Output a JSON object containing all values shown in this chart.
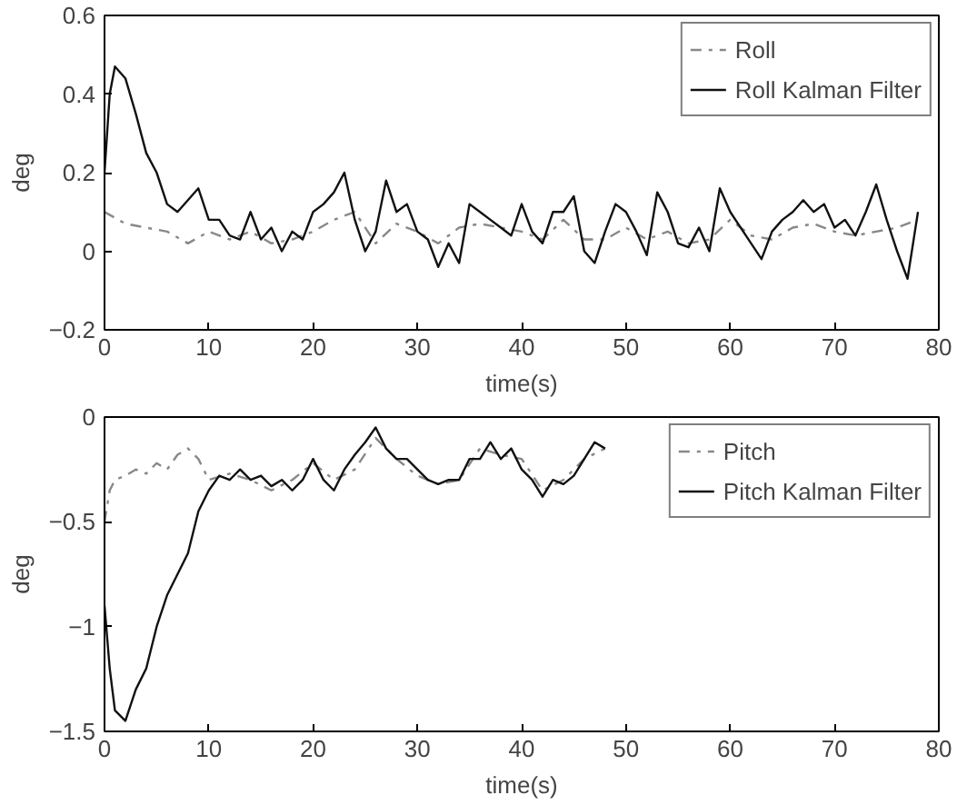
{
  "chart_data": [
    {
      "type": "line",
      "xlabel": "time(s)",
      "ylabel": "deg",
      "xlim": [
        0,
        80
      ],
      "ylim": [
        -0.2,
        0.6
      ],
      "xticks": [
        0,
        10,
        20,
        30,
        40,
        50,
        60,
        70,
        80
      ],
      "yticks": [
        -0.2,
        0,
        0.2,
        0.4,
        0.6
      ],
      "grid": false,
      "legend": "top right",
      "series": [
        {
          "name": "Roll",
          "color": "#888888",
          "line_style": "dashed",
          "x": [
            0,
            2,
            4,
            6,
            8,
            10,
            12,
            14,
            16,
            18,
            20,
            22,
            24,
            26,
            28,
            30,
            32,
            34,
            36,
            38,
            40,
            42,
            44,
            46,
            48,
            50,
            52,
            54,
            56,
            58,
            60,
            62,
            64,
            66,
            68,
            70,
            72,
            74,
            76,
            78
          ],
          "values": [
            0.1,
            0.07,
            0.06,
            0.05,
            0.02,
            0.05,
            0.03,
            0.05,
            0.02,
            0.03,
            0.05,
            0.08,
            0.1,
            0.02,
            0.07,
            0.05,
            0.02,
            0.06,
            0.07,
            0.06,
            0.05,
            0.03,
            0.08,
            0.03,
            0.03,
            0.06,
            0.03,
            0.05,
            0.02,
            0.03,
            0.08,
            0.04,
            0.03,
            0.06,
            0.07,
            0.05,
            0.04,
            0.05,
            0.06,
            0.08
          ]
        },
        {
          "name": "Roll Kalman Filter",
          "color": "#111111",
          "line_style": "solid",
          "x": [
            0,
            0.5,
            1,
            2,
            3,
            4,
            5,
            6,
            7,
            8,
            9,
            10,
            11,
            12,
            13,
            14,
            15,
            16,
            17,
            18,
            19,
            20,
            21,
            22,
            23,
            24,
            25,
            26,
            27,
            28,
            29,
            30,
            31,
            32,
            33,
            34,
            35,
            36,
            37,
            38,
            39,
            40,
            41,
            42,
            43,
            44,
            45,
            46,
            47,
            48,
            49,
            50,
            51,
            52,
            53,
            54,
            55,
            56,
            57,
            58,
            59,
            60,
            61,
            62,
            63,
            64,
            65,
            66,
            67,
            68,
            69,
            70,
            71,
            72,
            73,
            74,
            75,
            76,
            77,
            78
          ],
          "values": [
            0.2,
            0.4,
            0.47,
            0.44,
            0.35,
            0.25,
            0.2,
            0.12,
            0.1,
            0.13,
            0.16,
            0.08,
            0.08,
            0.04,
            0.03,
            0.1,
            0.03,
            0.06,
            0.0,
            0.05,
            0.03,
            0.1,
            0.12,
            0.15,
            0.2,
            0.08,
            0.0,
            0.05,
            0.18,
            0.1,
            0.12,
            0.05,
            0.03,
            -0.04,
            0.02,
            -0.03,
            0.12,
            0.1,
            0.08,
            0.06,
            0.04,
            0.12,
            0.05,
            0.02,
            0.1,
            0.1,
            0.14,
            0.0,
            -0.03,
            0.05,
            0.12,
            0.1,
            0.05,
            -0.01,
            0.15,
            0.1,
            0.02,
            0.01,
            0.06,
            0.0,
            0.16,
            0.1,
            0.06,
            0.02,
            -0.02,
            0.05,
            0.08,
            0.1,
            0.13,
            0.1,
            0.12,
            0.06,
            0.08,
            0.04,
            0.1,
            0.17,
            0.08,
            0.0,
            -0.07,
            0.1
          ]
        }
      ]
    },
    {
      "type": "line",
      "xlabel": "time(s)",
      "ylabel": "deg",
      "xlim": [
        0,
        80
      ],
      "ylim": [
        -1.5,
        0
      ],
      "xticks": [
        0,
        10,
        20,
        30,
        40,
        50,
        60,
        70,
        80
      ],
      "yticks": [
        -1.5,
        -1,
        -0.5,
        0
      ],
      "grid": false,
      "legend": "top right",
      "series": [
        {
          "name": "Pitch",
          "color": "#888888",
          "line_style": "dashed",
          "x": [
            0,
            0.5,
            1,
            2,
            3,
            4,
            5,
            6,
            7,
            8,
            9,
            10,
            12,
            14,
            16,
            18,
            20,
            22,
            24,
            26,
            28,
            30,
            32,
            34,
            36,
            38,
            40,
            42,
            44,
            46,
            48
          ],
          "values": [
            -0.5,
            -0.35,
            -0.3,
            -0.28,
            -0.25,
            -0.27,
            -0.22,
            -0.25,
            -0.18,
            -0.15,
            -0.2,
            -0.3,
            -0.27,
            -0.3,
            -0.35,
            -0.3,
            -0.22,
            -0.3,
            -0.25,
            -0.1,
            -0.2,
            -0.28,
            -0.32,
            -0.3,
            -0.15,
            -0.18,
            -0.2,
            -0.35,
            -0.3,
            -0.2,
            -0.15
          ]
        },
        {
          "name": "Pitch Kalman Filter",
          "color": "#111111",
          "line_style": "solid",
          "x": [
            0,
            0.5,
            1,
            2,
            3,
            4,
            5,
            6,
            7,
            8,
            9,
            10,
            11,
            12,
            13,
            14,
            15,
            16,
            17,
            18,
            19,
            20,
            21,
            22,
            23,
            24,
            25,
            26,
            27,
            28,
            29,
            30,
            31,
            32,
            33,
            34,
            35,
            36,
            37,
            38,
            39,
            40,
            41,
            42,
            43,
            44,
            45,
            46,
            47,
            48
          ],
          "values": [
            -0.9,
            -1.2,
            -1.4,
            -1.45,
            -1.3,
            -1.2,
            -1.0,
            -0.85,
            -0.75,
            -0.65,
            -0.45,
            -0.35,
            -0.28,
            -0.3,
            -0.25,
            -0.3,
            -0.28,
            -0.33,
            -0.3,
            -0.35,
            -0.3,
            -0.2,
            -0.3,
            -0.35,
            -0.25,
            -0.18,
            -0.12,
            -0.05,
            -0.15,
            -0.2,
            -0.2,
            -0.25,
            -0.3,
            -0.32,
            -0.3,
            -0.3,
            -0.2,
            -0.2,
            -0.12,
            -0.2,
            -0.15,
            -0.25,
            -0.3,
            -0.38,
            -0.3,
            -0.32,
            -0.28,
            -0.2,
            -0.12,
            -0.15
          ]
        }
      ]
    }
  ]
}
